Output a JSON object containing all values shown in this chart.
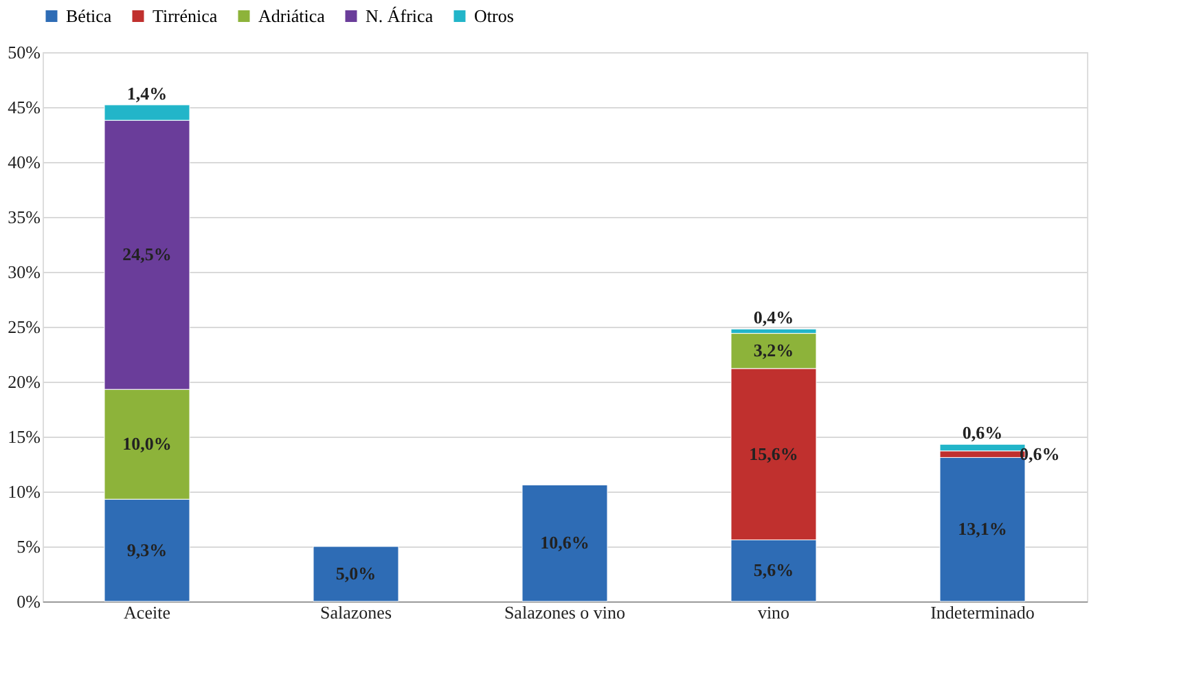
{
  "chart_data": {
    "type": "bar",
    "stacked": true,
    "categories": [
      "Aceite",
      "Salazones",
      "Salazones o vino",
      "vino",
      "Indeterminado"
    ],
    "series": [
      {
        "name": "Bética",
        "color": "#2e6cb5",
        "values": [
          9.3,
          5.0,
          10.6,
          5.6,
          13.1
        ],
        "value_labels": [
          "9,3%",
          "5,0%",
          "10,6%",
          "5,6%",
          "13,1%"
        ]
      },
      {
        "name": "Tirrénica",
        "color": "#c0302e",
        "values": [
          null,
          null,
          null,
          15.6,
          0.6
        ],
        "value_labels": [
          null,
          null,
          null,
          "15,6%",
          "0,6%"
        ]
      },
      {
        "name": "Adriática",
        "color": "#8db33a",
        "values": [
          10.0,
          null,
          null,
          3.2,
          null
        ],
        "value_labels": [
          "10,0%",
          null,
          null,
          "3,2%",
          null
        ]
      },
      {
        "name": "N. África",
        "color": "#6a3d9a",
        "values": [
          24.5,
          null,
          null,
          null,
          null
        ],
        "value_labels": [
          "24,5%",
          null,
          null,
          null,
          null
        ]
      },
      {
        "name": "Otros",
        "color": "#22b5c9",
        "values": [
          1.4,
          null,
          null,
          0.4,
          0.6
        ],
        "value_labels": [
          "1,4%",
          null,
          null,
          "0,4%",
          "0,6%"
        ]
      }
    ],
    "ylim": [
      0,
      50
    ],
    "yticks": [
      {
        "value": 0,
        "label": "0%"
      },
      {
        "value": 5,
        "label": "5%"
      },
      {
        "value": 10,
        "label": "10%"
      },
      {
        "value": 15,
        "label": "15%"
      },
      {
        "value": 20,
        "label": "20%"
      },
      {
        "value": 25,
        "label": "25%"
      },
      {
        "value": 30,
        "label": "30%"
      },
      {
        "value": 35,
        "label": "35%"
      },
      {
        "value": 40,
        "label": "40%"
      },
      {
        "value": 45,
        "label": "45%"
      },
      {
        "value": 50,
        "label": "50%"
      }
    ],
    "grid": "y",
    "legend": "top"
  }
}
